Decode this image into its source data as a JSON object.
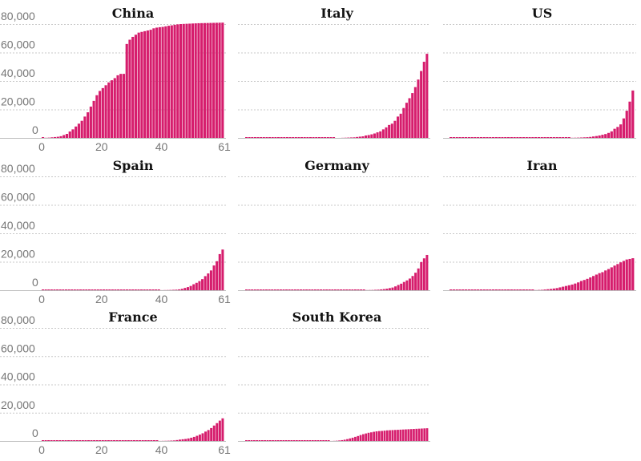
{
  "chart_data": {
    "type": "bar",
    "ylim": [
      0,
      80000
    ],
    "grid": true,
    "color": "#d61d6d",
    "y_ticks": [
      "80,000",
      "60,000",
      "40,000",
      "20,000",
      "0"
    ],
    "x_ticks": [
      "0",
      "20",
      "40",
      "61"
    ],
    "panels": [
      {
        "title": "China",
        "values": [
          0,
          100,
          200,
          400,
          600,
          800,
          1200,
          2000,
          2800,
          4500,
          6000,
          8000,
          10000,
          12000,
          15000,
          18000,
          22000,
          26000,
          30000,
          33000,
          35000,
          37000,
          39000,
          40500,
          42000,
          44000,
          45000,
          45000,
          66000,
          69000,
          71000,
          72500,
          74000,
          74500,
          75000,
          75500,
          76000,
          77000,
          77500,
          77800,
          78000,
          78400,
          78800,
          79100,
          79500,
          79800,
          80000,
          80100,
          80200,
          80300,
          80400,
          80500,
          80600,
          80650,
          80700,
          80750,
          80800,
          80850,
          80900,
          80950,
          81000
        ]
      },
      {
        "title": "Italy",
        "values": [
          0,
          0,
          0,
          0,
          0,
          0,
          0,
          0,
          0,
          0,
          0,
          0,
          0,
          0,
          0,
          0,
          0,
          0,
          0,
          0,
          0,
          0,
          0,
          0,
          0,
          0,
          0,
          0,
          0,
          0,
          0,
          3,
          20,
          80,
          150,
          230,
          320,
          400,
          650,
          890,
          1100,
          1700,
          2000,
          2500,
          3100,
          3900,
          4600,
          6000,
          7400,
          9100,
          10000,
          12000,
          15000,
          17000,
          21000,
          24700,
          27900,
          31500,
          35700,
          41000,
          47000,
          53500,
          59100
        ]
      },
      {
        "title": "US",
        "values": [
          0,
          0,
          0,
          0,
          0,
          0,
          0,
          0,
          0,
          0,
          0,
          0,
          0,
          0,
          0,
          0,
          0,
          0,
          0,
          0,
          0,
          0,
          0,
          0,
          0,
          0,
          0,
          0,
          0,
          0,
          0,
          0,
          0,
          0,
          0,
          0,
          0,
          0,
          0,
          0,
          100,
          150,
          200,
          280,
          400,
          500,
          700,
          1000,
          1300,
          1700,
          2200,
          2700,
          3500,
          4600,
          6400,
          7700,
          9500,
          13700,
          19100,
          25500,
          33300
        ]
      },
      {
        "title": "Spain",
        "values": [
          0,
          0,
          0,
          0,
          0,
          0,
          0,
          0,
          0,
          0,
          0,
          0,
          0,
          0,
          0,
          0,
          0,
          0,
          0,
          0,
          0,
          0,
          0,
          0,
          0,
          0,
          0,
          0,
          0,
          0,
          0,
          0,
          0,
          0,
          0,
          0,
          0,
          0,
          0,
          0,
          0,
          50,
          100,
          150,
          200,
          300,
          400,
          600,
          1000,
          1600,
          2200,
          3000,
          4200,
          5200,
          6400,
          7800,
          9900,
          11800,
          13900,
          17400,
          20400,
          25400,
          28600
        ]
      },
      {
        "title": "Germany",
        "values": [
          0,
          0,
          0,
          0,
          0,
          0,
          0,
          0,
          0,
          0,
          0,
          0,
          0,
          0,
          0,
          0,
          0,
          0,
          0,
          0,
          0,
          0,
          0,
          0,
          0,
          0,
          0,
          0,
          0,
          0,
          0,
          0,
          0,
          0,
          0,
          0,
          0,
          0,
          0,
          0,
          0,
          0,
          100,
          150,
          200,
          300,
          400,
          600,
          800,
          1100,
          1500,
          1900,
          2700,
          3700,
          4600,
          5800,
          6900,
          8200,
          10000,
          12300,
          15300,
          19800,
          22400,
          24800
        ]
      },
      {
        "title": "Iran",
        "values": [
          0,
          0,
          0,
          0,
          0,
          0,
          0,
          0,
          0,
          0,
          0,
          0,
          0,
          0,
          0,
          0,
          0,
          0,
          0,
          0,
          0,
          0,
          0,
          0,
          0,
          0,
          0,
          0,
          100,
          200,
          300,
          500,
          700,
          900,
          1200,
          1500,
          2000,
          2500,
          3000,
          3500,
          4000,
          4700,
          5500,
          6500,
          7200,
          8000,
          9000,
          10000,
          11000,
          12000,
          12700,
          13900,
          14900,
          16100,
          17300,
          18400,
          19600,
          20600,
          21600,
          22000,
          22500
        ]
      },
      {
        "title": "France",
        "values": [
          0,
          0,
          0,
          0,
          0,
          0,
          0,
          0,
          0,
          0,
          0,
          0,
          0,
          0,
          0,
          0,
          0,
          0,
          0,
          0,
          0,
          0,
          0,
          0,
          0,
          0,
          0,
          0,
          0,
          0,
          0,
          0,
          0,
          0,
          0,
          0,
          0,
          0,
          0,
          0,
          0,
          50,
          100,
          130,
          190,
          280,
          380,
          650,
          950,
          1200,
          1400,
          1780,
          2280,
          2880,
          3660,
          4500,
          5420,
          6630,
          7730,
          9130,
          10900,
          12600,
          14400,
          16000
        ]
      },
      {
        "title": "South Korea",
        "values": [
          0,
          0,
          0,
          0,
          0,
          0,
          0,
          0,
          0,
          0,
          0,
          0,
          0,
          0,
          0,
          0,
          0,
          0,
          0,
          0,
          0,
          0,
          0,
          0,
          0,
          0,
          0,
          0,
          0,
          0,
          0,
          0,
          30,
          100,
          200,
          350,
          600,
          900,
          1300,
          1800,
          2300,
          2900,
          3500,
          4200,
          4800,
          5300,
          5800,
          6100,
          6500,
          6800,
          7000,
          7100,
          7300,
          7500,
          7600,
          7700,
          7800,
          7900,
          8000,
          8100,
          8200,
          8300,
          8400,
          8500,
          8600,
          8700,
          8800,
          8900,
          9000
        ]
      }
    ]
  }
}
